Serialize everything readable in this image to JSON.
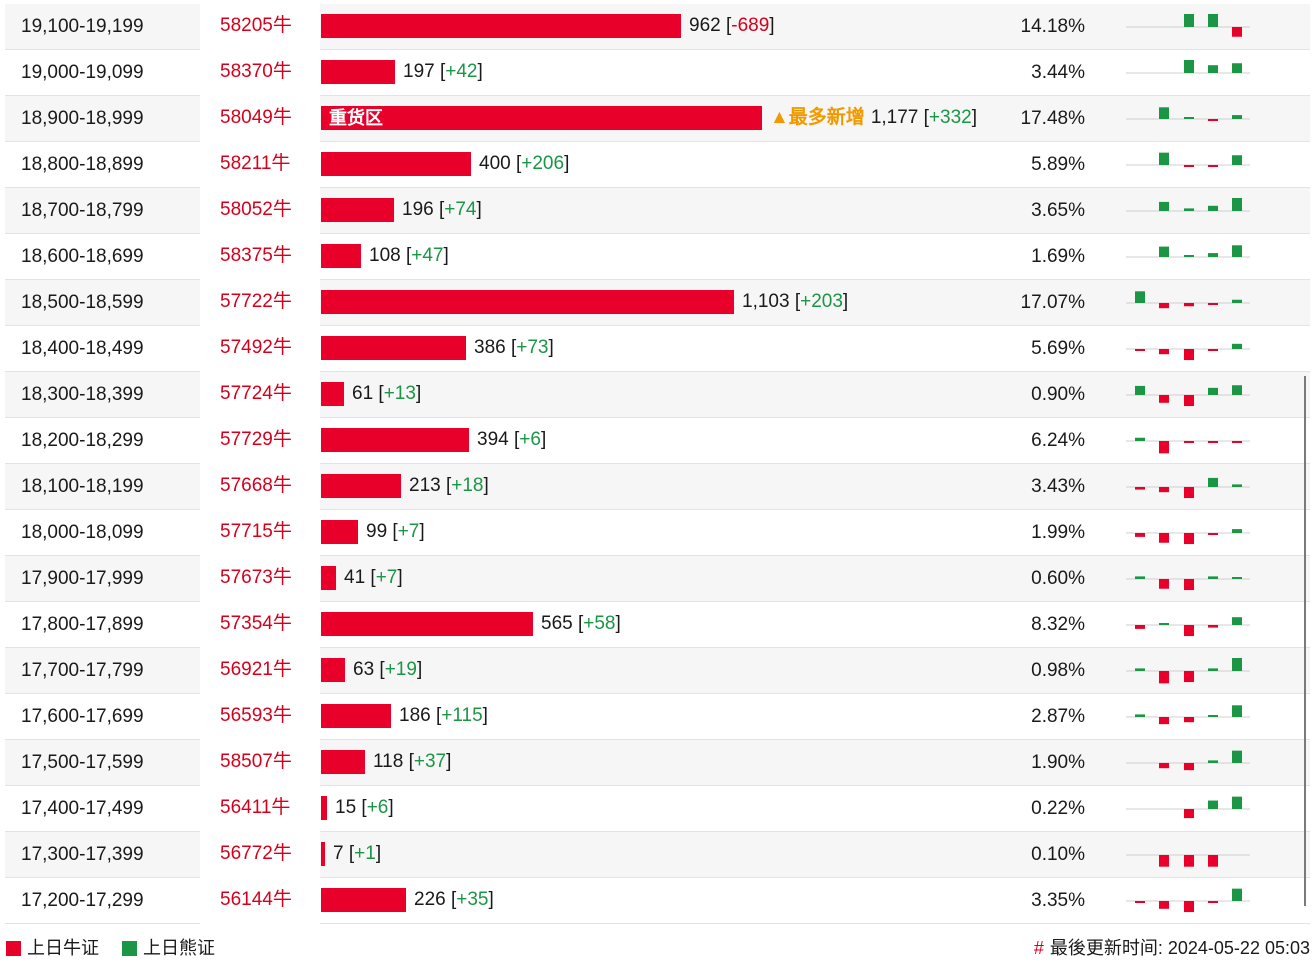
{
  "colors": {
    "bull": "#e8002a",
    "bear": "#1a9645",
    "highlight_tag": "#f09a00"
  },
  "chart_data": {
    "type": "bar",
    "columns": [
      "range",
      "code",
      "count",
      "change",
      "percent",
      "sparkline"
    ],
    "rows": [
      {
        "range": "19,100-19,199",
        "code": "58205牛",
        "count": 962,
        "count_label": "962",
        "change": "-689",
        "pct": "14.18%",
        "spark": [
          0,
          0,
          2,
          2,
          -1.5
        ]
      },
      {
        "range": "19,000-19,099",
        "code": "58370牛",
        "count": 197,
        "count_label": "197",
        "change": "+42",
        "pct": "3.44%",
        "spark": [
          0,
          0,
          2,
          1.2,
          1.5
        ]
      },
      {
        "range": "18,900-18,999",
        "code": "58049牛",
        "count": 1177,
        "count_label": "1,177",
        "change": "+332",
        "pct": "17.48%",
        "zone": "重货区",
        "tag": "▲最多新增",
        "spark": [
          0,
          1.8,
          0.3,
          -0.3,
          0.6
        ]
      },
      {
        "range": "18,800-18,899",
        "code": "58211牛",
        "count": 400,
        "count_label": "400",
        "change": "+206",
        "pct": "5.89%",
        "spark": [
          0,
          1.9,
          -0.3,
          -0.3,
          1.5
        ]
      },
      {
        "range": "18,700-18,799",
        "code": "58052牛",
        "count": 196,
        "count_label": "196",
        "change": "+74",
        "pct": "3.65%",
        "spark": [
          0,
          1.4,
          0.4,
          0.8,
          2
        ]
      },
      {
        "range": "18,600-18,699",
        "code": "58375牛",
        "count": 108,
        "count_label": "108",
        "change": "+47",
        "pct": "1.69%",
        "spark": [
          0,
          1.6,
          0.3,
          0.6,
          1.8
        ]
      },
      {
        "range": "18,500-18,599",
        "code": "57722牛",
        "count": 1103,
        "count_label": "1,103",
        "change": "+203",
        "pct": "17.07%",
        "spark": [
          1.8,
          -0.8,
          -0.5,
          -0.1,
          0.5
        ]
      },
      {
        "range": "18,400-18,499",
        "code": "57492牛",
        "count": 386,
        "count_label": "386",
        "change": "+73",
        "pct": "5.69%",
        "spark": [
          -0.2,
          -0.8,
          -1.7,
          -0.1,
          0.8
        ]
      },
      {
        "range": "18,300-18,399",
        "code": "57724牛",
        "count": 61,
        "count_label": "61",
        "change": "+13",
        "pct": "0.90%",
        "spark": [
          1.4,
          -1.2,
          -1.7,
          1.1,
          1.5
        ]
      },
      {
        "range": "18,200-18,299",
        "code": "57729牛",
        "count": 394,
        "count_label": "394",
        "change": "+6",
        "pct": "6.24%",
        "spark": [
          0.5,
          -1.9,
          -0.3,
          -0.3,
          -0.1
        ]
      },
      {
        "range": "18,100-18,199",
        "code": "57668牛",
        "count": 213,
        "count_label": "213",
        "change": "+18",
        "pct": "3.43%",
        "spark": [
          -0.4,
          -0.8,
          -1.7,
          1.4,
          0.4
        ]
      },
      {
        "range": "18,000-18,099",
        "code": "57715牛",
        "count": 99,
        "count_label": "99",
        "change": "+7",
        "pct": "1.99%",
        "spark": [
          -0.6,
          -1.5,
          -1.7,
          -0.1,
          0.6
        ]
      },
      {
        "range": "17,900-17,999",
        "code": "57673牛",
        "count": 41,
        "count_label": "41",
        "change": "+7",
        "pct": "0.60%",
        "spark": [
          0.4,
          -1.5,
          -1.7,
          0.4,
          0.3
        ]
      },
      {
        "range": "17,800-17,899",
        "code": "57354牛",
        "count": 565,
        "count_label": "565",
        "change": "+58",
        "pct": "8.32%",
        "spark": [
          -0.6,
          0.1,
          -1.7,
          -0.4,
          1.2
        ]
      },
      {
        "range": "17,700-17,799",
        "code": "56921牛",
        "count": 63,
        "count_label": "63",
        "change": "+19",
        "pct": "0.98%",
        "spark": [
          0.4,
          -1.9,
          -1.7,
          0.4,
          2
        ]
      },
      {
        "range": "17,600-17,699",
        "code": "56593牛",
        "count": 186,
        "count_label": "186",
        "change": "+115",
        "pct": "2.87%",
        "spark": [
          0.4,
          -1.1,
          -0.8,
          0.1,
          1.8
        ]
      },
      {
        "range": "17,500-17,599",
        "code": "58507牛",
        "count": 118,
        "count_label": "118",
        "change": "+37",
        "pct": "1.90%",
        "spark": [
          0,
          -0.8,
          -1.1,
          0.4,
          1.9
        ]
      },
      {
        "range": "17,400-17,499",
        "code": "56411牛",
        "count": 15,
        "count_label": "15",
        "change": "+6",
        "pct": "0.22%",
        "spark": [
          0,
          0,
          -1.4,
          1.3,
          1.9
        ]
      },
      {
        "range": "17,300-17,399",
        "code": "56772牛",
        "count": 7,
        "count_label": "7",
        "change": "+1",
        "pct": "0.10%",
        "spark": [
          0,
          -1.8,
          -1.8,
          -1.8,
          0
        ]
      },
      {
        "range": "17,200-17,299",
        "code": "56144牛",
        "count": 226,
        "count_label": "226",
        "change": "+35",
        "pct": "3.35%",
        "spark": [
          -0.1,
          -1.2,
          -1.7,
          -0.1,
          1.9
        ]
      }
    ]
  },
  "footer": {
    "legend_bull": "上日牛证",
    "legend_bear": "上日熊证",
    "updated_symbol": "#",
    "updated_text": "最後更新时间: 2024-05-22 05:03"
  }
}
